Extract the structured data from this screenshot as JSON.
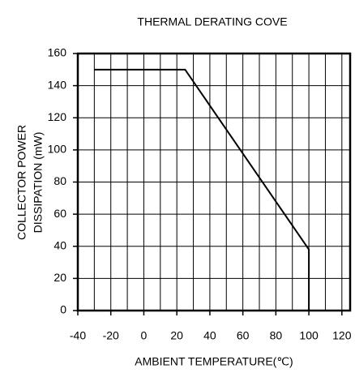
{
  "chart_data": {
    "type": "line",
    "title": "THERMAL DERATING COVE",
    "xlabel": "AMBIENT TEMPERATURE(℃)",
    "ylabel": [
      "COLLECTOR POWER",
      "DISSIPATION (mW)"
    ],
    "series": [
      {
        "color": "#000000",
        "x": [
          -30,
          25,
          100,
          100
        ],
        "values": [
          150,
          150,
          38,
          0
        ]
      }
    ],
    "xlim": [
      -40,
      125
    ],
    "ylim": [
      0,
      160
    ],
    "xticks": [
      -40,
      -20,
      0,
      20,
      40,
      60,
      80,
      100,
      120
    ],
    "xgrid": [
      -30,
      -20,
      -10,
      0,
      10,
      20,
      30,
      40,
      50,
      60,
      70,
      80,
      90,
      100,
      110,
      120
    ],
    "yticks": [
      0,
      20,
      40,
      60,
      80,
      100,
      120,
      140,
      160
    ],
    "grid": true
  }
}
